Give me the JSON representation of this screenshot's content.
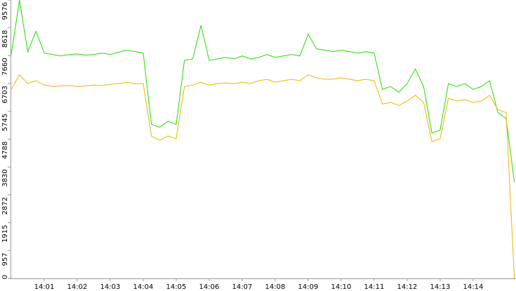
{
  "chart_data": {
    "type": "line",
    "x": [
      840,
      840.25,
      840.5,
      840.75,
      841,
      841.25,
      841.5,
      841.75,
      842,
      842.25,
      842.5,
      842.75,
      843,
      843.25,
      843.5,
      843.75,
      844,
      844.25,
      844.5,
      844.75,
      845,
      845.25,
      845.5,
      845.75,
      846,
      846.25,
      846.5,
      846.75,
      847,
      847.25,
      847.5,
      847.75,
      848,
      848.25,
      848.5,
      848.75,
      849,
      849.25,
      849.5,
      849.75,
      850,
      850.25,
      850.5,
      850.75,
      851,
      851.25,
      851.5,
      851.75,
      852,
      852.25,
      852.5,
      852.75,
      853,
      853.25,
      853.5,
      853.75,
      854,
      854.25,
      854.5,
      854.75,
      855,
      855.25
    ],
    "series": [
      {
        "color": "#22dd00",
        "values": [
          7700,
          9576,
          7800,
          8500,
          7750,
          7700,
          7650,
          7700,
          7720,
          7680,
          7700,
          7750,
          7700,
          7780,
          7850,
          7800,
          7750,
          5300,
          5200,
          5400,
          5300,
          7500,
          7550,
          8700,
          7500,
          7550,
          7600,
          7550,
          7650,
          7550,
          7600,
          7700,
          7600,
          7650,
          7700,
          7650,
          8400,
          7900,
          7850,
          7800,
          7850,
          7800,
          7750,
          7800,
          7750,
          6500,
          6600,
          6400,
          6700,
          7200,
          6600,
          5000,
          5100,
          6700,
          6600,
          6700,
          6500,
          6600,
          6800,
          5700,
          5500,
          3300
        ]
      },
      {
        "color": "#f0b400",
        "values": [
          6500,
          7000,
          6700,
          6800,
          6650,
          6600,
          6620,
          6640,
          6600,
          6620,
          6650,
          6630,
          6680,
          6700,
          6750,
          6700,
          6700,
          4900,
          4750,
          4900,
          4800,
          6600,
          6650,
          6750,
          6650,
          6700,
          6720,
          6700,
          6750,
          6700,
          6800,
          6850,
          6750,
          6800,
          6850,
          6800,
          7000,
          6900,
          6850,
          6850,
          6900,
          6850,
          6800,
          6850,
          6800,
          6000,
          6050,
          5950,
          6100,
          6300,
          6050,
          4700,
          4800,
          6200,
          6100,
          6150,
          6050,
          6100,
          6300,
          5800,
          5700,
          0
        ]
      }
    ],
    "xlim": [
      840,
      855.3
    ],
    "xticks": [
      {
        "value": 841,
        "label": "14:01"
      },
      {
        "value": 842,
        "label": "14:02"
      },
      {
        "value": 843,
        "label": "14:03"
      },
      {
        "value": 844,
        "label": "14:04"
      },
      {
        "value": 845,
        "label": "14:05"
      },
      {
        "value": 846,
        "label": "14:06"
      },
      {
        "value": 847,
        "label": "14:07"
      },
      {
        "value": 848,
        "label": "14:08"
      },
      {
        "value": 849,
        "label": "14:09"
      },
      {
        "value": 850,
        "label": "14:10"
      },
      {
        "value": 851,
        "label": "14:11"
      },
      {
        "value": 852,
        "label": "14:12"
      },
      {
        "value": 853,
        "label": "14:13"
      },
      {
        "value": 854,
        "label": "14:14"
      }
    ],
    "ylim": [
      0,
      9576
    ],
    "yticks": [
      0,
      957,
      1915,
      2872,
      3830,
      4788,
      5745,
      6703,
      7660,
      8618,
      9576
    ],
    "grid": false
  }
}
